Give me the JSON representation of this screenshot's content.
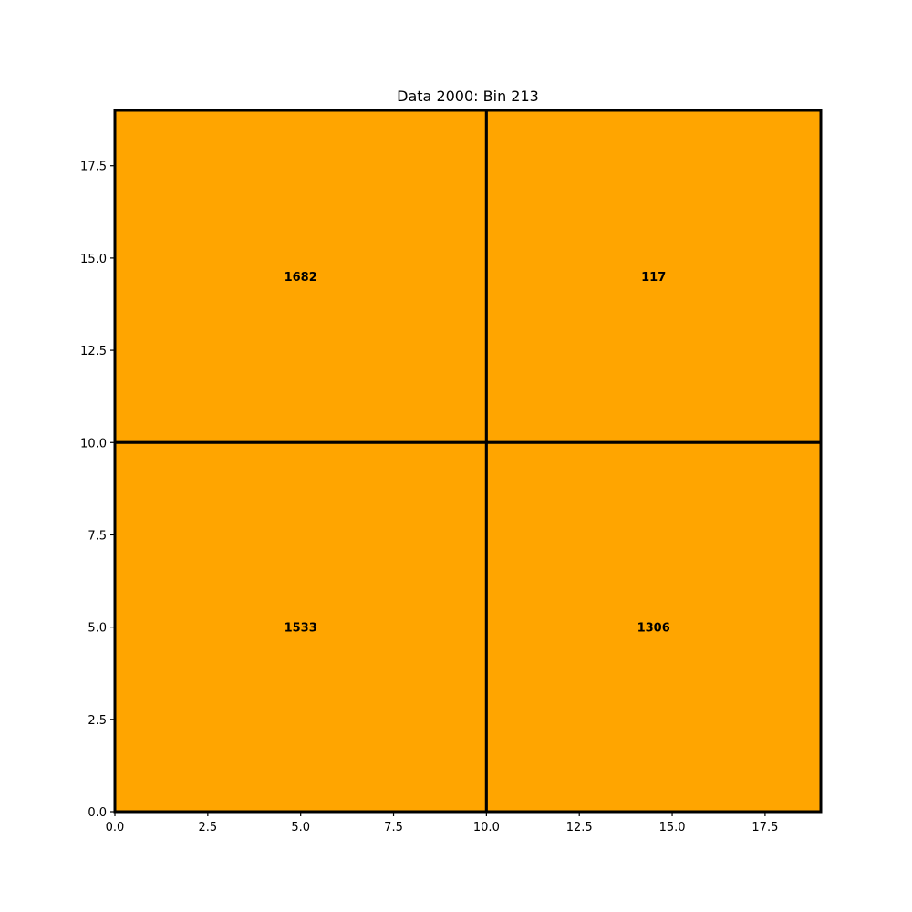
{
  "chart_data": {
    "type": "heatmap",
    "title": "Data 2000: Bin 213",
    "xlabel": "",
    "ylabel": "",
    "xlim": [
      0,
      19
    ],
    "ylim": [
      0,
      19
    ],
    "xticks": [
      0.0,
      2.5,
      5.0,
      7.5,
      10.0,
      12.5,
      15.0,
      17.5
    ],
    "yticks": [
      0.0,
      2.5,
      5.0,
      7.5,
      10.0,
      12.5,
      15.0,
      17.5
    ],
    "xtick_labels": [
      "0.0",
      "2.5",
      "5.0",
      "7.5",
      "10.0",
      "12.5",
      "15.0",
      "17.5"
    ],
    "ytick_labels": [
      "0.0",
      "2.5",
      "5.0",
      "7.5",
      "10.0",
      "12.5",
      "15.0",
      "17.5"
    ],
    "grid": false,
    "fill_color": "#FFA500",
    "line_color": "#000000",
    "cells": [
      {
        "x0": 0,
        "x1": 10,
        "y0": 10,
        "y1": 19,
        "value": 1682,
        "label": "1682",
        "label_x": 5,
        "label_y": 14.5
      },
      {
        "x0": 10,
        "x1": 19,
        "y0": 10,
        "y1": 19,
        "value": 117,
        "label": "117",
        "label_x": 14.5,
        "label_y": 14.5
      },
      {
        "x0": 0,
        "x1": 10,
        "y0": 0,
        "y1": 10,
        "value": 1533,
        "label": "1533",
        "label_x": 5,
        "label_y": 5
      },
      {
        "x0": 10,
        "x1": 19,
        "y0": 0,
        "y1": 10,
        "value": 1306,
        "label": "1306",
        "label_x": 14.5,
        "label_y": 5
      }
    ]
  }
}
